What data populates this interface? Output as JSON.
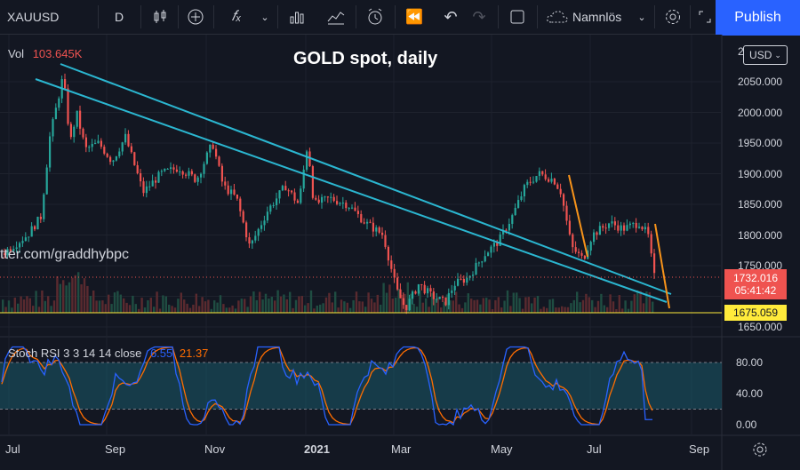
{
  "toolbar": {
    "symbol": "XAUUSD",
    "interval": "D",
    "chart_name": "Namnlös",
    "publish_label": "Publish"
  },
  "chart": {
    "title": "GOLD spot, daily",
    "watermark": "tter.com/graddhybpc",
    "vol_label": "Vol",
    "vol_value": "103.645K",
    "currency": "USD",
    "price_ticks": [
      "2",
      "2050.000",
      "2000.000",
      "1950.000",
      "1900.000",
      "1850.000",
      "1800.000",
      "1750.000",
      "1650.000"
    ],
    "current_price": "1732.016",
    "countdown": "05:41:42",
    "level_price": "1675.059",
    "time_ticks": [
      "Jul",
      "Sep",
      "Nov",
      "2021",
      "Mar",
      "May",
      "Jul",
      "Sep"
    ],
    "colors": {
      "up": "#26a69a",
      "down": "#ef5350",
      "trendline": "#2bb6d0",
      "orange": "#f7931a",
      "level": "#ffeb3b",
      "price_tag": "#ef5350"
    }
  },
  "stoch": {
    "label": "Stoch RSI 3 3 14 14 close",
    "k_value": "6.55",
    "d_value": "21.37",
    "ticks": [
      "80.00",
      "40.00",
      "0.00"
    ],
    "colors": {
      "k": "#2962ff",
      "d": "#ff6d00",
      "band": "#1a5a6a"
    }
  }
}
